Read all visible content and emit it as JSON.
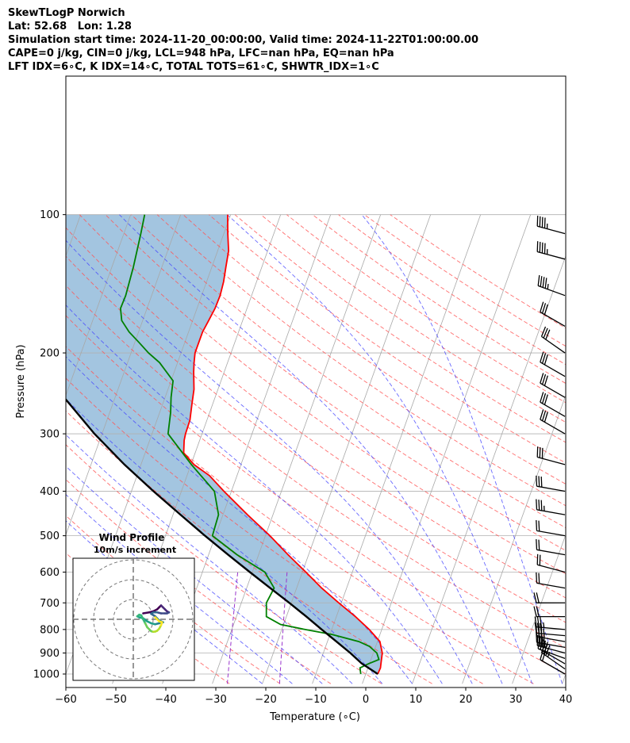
{
  "header": {
    "line1": "SkewTLogP Norwich",
    "line2": "Lat: 52.68   Lon: 1.28",
    "line3": "Simulation start time: 2024-11-20_00:00:00, Valid time: 2024-11-22T01:00:00.00",
    "line4": "CAPE=0 j/kg, CIN=0 j/kg, LCL=948 hPa, LFC=nan hPa, EQ=nan hPa",
    "line5": "LFT IDX=6∘C, K IDX=14∘C, TOTAL TOTS=61∘C, SHWTR_IDX=1∘C"
  },
  "chart_data": {
    "type": "line",
    "xlabel": "Temperature (∘C)",
    "ylabel": "Pressure (hPa)",
    "xlim": [
      -60,
      40
    ],
    "ylim": [
      1050,
      100
    ],
    "y_scale": "log",
    "skew": true,
    "x_ticks": [
      "−60",
      "−50",
      "−40",
      "−30",
      "−20",
      "−10",
      "0",
      "10",
      "20",
      "30",
      "40"
    ],
    "y_ticks": [
      "100",
      "200",
      "300",
      "400",
      "500",
      "600",
      "700",
      "800",
      "900",
      "1000"
    ],
    "series": [
      {
        "key": "temperature",
        "color": "#ff0000",
        "points": [
          [
            1000,
            2.4
          ],
          [
            970,
            2.5
          ],
          [
            950,
            2.3
          ],
          [
            900,
            1.8
          ],
          [
            850,
            0.5
          ],
          [
            800,
            -2.5
          ],
          [
            750,
            -6.2
          ],
          [
            700,
            -10.5
          ],
          [
            650,
            -15.0
          ],
          [
            600,
            -19.3
          ],
          [
            550,
            -24.1
          ],
          [
            500,
            -29.1
          ],
          [
            450,
            -35.1
          ],
          [
            400,
            -41.5
          ],
          [
            370,
            -45.5
          ],
          [
            350,
            -49.4
          ],
          [
            330,
            -52.3
          ],
          [
            310,
            -53.1
          ],
          [
            300,
            -53.3
          ],
          [
            280,
            -53.4
          ],
          [
            260,
            -54.1
          ],
          [
            240,
            -54.8
          ],
          [
            220,
            -56.1
          ],
          [
            210,
            -56.7
          ],
          [
            200,
            -57.2
          ],
          [
            190,
            -57.2
          ],
          [
            180,
            -57.2
          ],
          [
            170,
            -56.8
          ],
          [
            160,
            -56.4
          ],
          [
            150,
            -56.3
          ],
          [
            140,
            -56.6
          ],
          [
            130,
            -57.2
          ],
          [
            120,
            -57.8
          ],
          [
            110,
            -59.2
          ],
          [
            100,
            -60.6
          ]
        ]
      },
      {
        "key": "dewpoint",
        "color": "#008000",
        "points": [
          [
            1000,
            -1.0
          ],
          [
            970,
            -1.6
          ],
          [
            950,
            -0.2
          ],
          [
            930,
            1.6
          ],
          [
            900,
            0.7
          ],
          [
            870,
            -1.3
          ],
          [
            850,
            -3.7
          ],
          [
            820,
            -9.6
          ],
          [
            800,
            -15.3
          ],
          [
            780,
            -20.6
          ],
          [
            750,
            -24.0
          ],
          [
            700,
            -25.0
          ],
          [
            650,
            -24.5
          ],
          [
            600,
            -27.5
          ],
          [
            550,
            -34.3
          ],
          [
            500,
            -40.6
          ],
          [
            450,
            -40.9
          ],
          [
            400,
            -43.4
          ],
          [
            350,
            -49.9
          ],
          [
            300,
            -56.8
          ],
          [
            270,
            -57.8
          ],
          [
            250,
            -58.8
          ],
          [
            230,
            -59.6
          ],
          [
            210,
            -63.6
          ],
          [
            200,
            -66.5
          ],
          [
            190,
            -69.1
          ],
          [
            180,
            -71.9
          ],
          [
            170,
            -74.2
          ],
          [
            160,
            -75.3
          ],
          [
            150,
            -75.2
          ],
          [
            130,
            -75.7
          ],
          [
            110,
            -76.6
          ],
          [
            100,
            -77.2
          ]
        ]
      },
      {
        "key": "parcel",
        "color": "#000000",
        "points": [
          [
            1000,
            2.4
          ],
          [
            948,
            -1.6
          ],
          [
            900,
            -4.6
          ],
          [
            850,
            -8.2
          ],
          [
            800,
            -12.0
          ],
          [
            750,
            -16.0
          ],
          [
            700,
            -20.4
          ],
          [
            650,
            -25.3
          ],
          [
            600,
            -30.5
          ],
          [
            550,
            -36.1
          ],
          [
            500,
            -42.1
          ],
          [
            450,
            -48.5
          ],
          [
            400,
            -55.6
          ],
          [
            350,
            -63.3
          ],
          [
            300,
            -71.5
          ],
          [
            250,
            -80.2
          ],
          [
            200,
            -89.5
          ],
          [
            150,
            -99.3
          ],
          [
            100,
            -109.7
          ]
        ]
      }
    ],
    "wind_barbs": [
      {
        "p": 1000,
        "speed": 20,
        "dir": 300
      },
      {
        "p": 975,
        "speed": 25,
        "dir": 305
      },
      {
        "p": 950,
        "speed": 25,
        "dir": 300
      },
      {
        "p": 925,
        "speed": 25,
        "dir": 290
      },
      {
        "p": 900,
        "speed": 25,
        "dir": 285
      },
      {
        "p": 875,
        "speed": 25,
        "dir": 280
      },
      {
        "p": 850,
        "speed": 25,
        "dir": 280
      },
      {
        "p": 825,
        "speed": 25,
        "dir": 275
      },
      {
        "p": 800,
        "speed": 25,
        "dir": 275
      },
      {
        "p": 750,
        "speed": 20,
        "dir": 270
      },
      {
        "p": 700,
        "speed": 20,
        "dir": 270
      },
      {
        "p": 650,
        "speed": 20,
        "dir": 280
      },
      {
        "p": 600,
        "speed": 20,
        "dir": 285
      },
      {
        "p": 550,
        "speed": 20,
        "dir": 280
      },
      {
        "p": 500,
        "speed": 20,
        "dir": 280
      },
      {
        "p": 450,
        "speed": 25,
        "dir": 280
      },
      {
        "p": 400,
        "speed": 30,
        "dir": 280
      },
      {
        "p": 350,
        "speed": 30,
        "dir": 285
      },
      {
        "p": 300,
        "speed": 30,
        "dir": 300
      },
      {
        "p": 275,
        "speed": 30,
        "dir": 300
      },
      {
        "p": 250,
        "speed": 30,
        "dir": 300
      },
      {
        "p": 225,
        "speed": 30,
        "dir": 300
      },
      {
        "p": 200,
        "speed": 30,
        "dir": 305
      },
      {
        "p": 175,
        "speed": 30,
        "dir": 300
      },
      {
        "p": 150,
        "speed": 35,
        "dir": 290
      },
      {
        "p": 125,
        "speed": 35,
        "dir": 285
      },
      {
        "p": 110,
        "speed": 35,
        "dir": 285
      }
    ],
    "hodograph": {
      "title": "Wind Profile",
      "subtitle": "10m/s increment",
      "rings": [
        10,
        20,
        30
      ],
      "points": [
        [
          5,
          -3
        ],
        [
          8,
          -3.5
        ],
        [
          10,
          -4
        ],
        [
          12,
          -5
        ],
        [
          13,
          -6
        ],
        [
          14,
          -7
        ],
        [
          15,
          -6
        ],
        [
          16,
          -5
        ],
        [
          17,
          -4
        ],
        [
          18,
          -3.5
        ],
        [
          17,
          -3
        ],
        [
          16,
          -3
        ],
        [
          14,
          -3
        ],
        [
          12,
          -3.5
        ],
        [
          10,
          -3.5
        ],
        [
          9,
          -2.8
        ],
        [
          11,
          -1.5
        ],
        [
          12,
          -0.5
        ],
        [
          13,
          0.5
        ],
        [
          15,
          1.5
        ],
        [
          13,
          2
        ],
        [
          11,
          2.5
        ],
        [
          9,
          2
        ],
        [
          7,
          1
        ],
        [
          5,
          -0.5
        ],
        [
          3,
          -1
        ],
        [
          2,
          -1.5
        ],
        [
          3,
          -2.3
        ],
        [
          4,
          -2
        ],
        [
          5,
          0
        ],
        [
          6,
          2
        ],
        [
          7,
          4
        ],
        [
          8,
          5
        ],
        [
          9,
          6
        ],
        [
          10,
          6.3
        ],
        [
          11,
          6.2
        ],
        [
          12,
          5.8
        ],
        [
          13,
          4.8
        ],
        [
          14,
          3
        ],
        [
          14.5,
          1.5
        ],
        [
          13,
          1
        ],
        [
          12,
          0
        ],
        [
          11,
          -1
        ]
      ]
    }
  }
}
